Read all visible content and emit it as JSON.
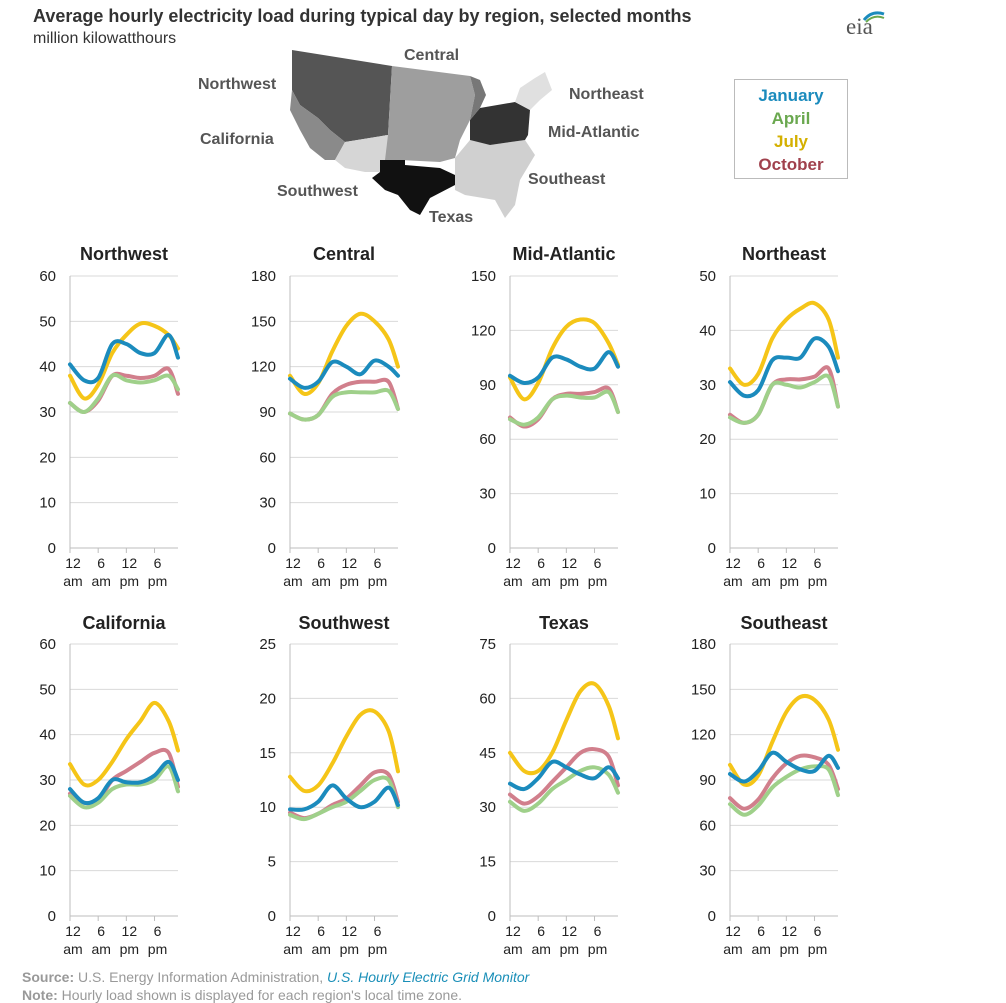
{
  "title": "Average hourly electricity load during typical day by region, selected months",
  "subtitle": "million kilowatthours",
  "logo_text": "eia",
  "map": {
    "labels": {
      "northwest": "Northwest",
      "central": "Central",
      "northeast": "Northeast",
      "california": "California",
      "mid_atlantic": "Mid-Atlantic",
      "southwest": "Southwest",
      "southeast": "Southeast",
      "texas": "Texas"
    }
  },
  "legend": {
    "items": [
      {
        "label": "January",
        "color": "#1b8bbd"
      },
      {
        "label": "April",
        "color": "#6aa84f"
      },
      {
        "label": "July",
        "color": "#d4b000"
      },
      {
        "label": "October",
        "color": "#a0414d"
      }
    ]
  },
  "series_colors": {
    "January": "#1b8bbd",
    "April": "#9fd08a",
    "July": "#f5c518",
    "October": "#d17f8c"
  },
  "chart_data": [
    {
      "type": "line",
      "title": "Northwest",
      "ylim": [
        0,
        60
      ],
      "yticks": [
        "0",
        "10",
        "20",
        "30",
        "40",
        "50",
        "60"
      ],
      "xticks": [
        [
          "12",
          "am"
        ],
        [
          "6",
          "am"
        ],
        [
          "12",
          "pm"
        ],
        [
          "6",
          "pm"
        ]
      ],
      "x": [
        0,
        3,
        6,
        9,
        12,
        15,
        18,
        21,
        23
      ],
      "series": [
        {
          "name": "January",
          "values": [
            40.5,
            37,
            37.5,
            45,
            45,
            43,
            43,
            47,
            42
          ]
        },
        {
          "name": "April",
          "values": [
            32,
            30,
            33,
            38,
            37,
            36.5,
            37,
            38,
            35
          ]
        },
        {
          "name": "July",
          "values": [
            38,
            33,
            36,
            43,
            47,
            49.5,
            49,
            47,
            44
          ]
        },
        {
          "name": "October",
          "values": [
            32,
            30,
            32.5,
            38,
            38,
            37.5,
            38,
            39.5,
            34
          ]
        }
      ]
    },
    {
      "type": "line",
      "title": "Central",
      "ylim": [
        0,
        180
      ],
      "yticks": [
        "0",
        "30",
        "60",
        "90",
        "120",
        "150",
        "180"
      ],
      "xticks": [
        [
          "12",
          "am"
        ],
        [
          "6",
          "am"
        ],
        [
          "12",
          "pm"
        ],
        [
          "6",
          "pm"
        ]
      ],
      "x": [
        0,
        3,
        6,
        9,
        12,
        15,
        18,
        21,
        23
      ],
      "series": [
        {
          "name": "January",
          "values": [
            112,
            106,
            110,
            123,
            120,
            115,
            124,
            120,
            114
          ]
        },
        {
          "name": "April",
          "values": [
            89,
            85,
            88,
            100,
            103,
            103,
            103,
            104,
            92
          ]
        },
        {
          "name": "July",
          "values": [
            114,
            102,
            109,
            130,
            147,
            155,
            150,
            138,
            120
          ]
        },
        {
          "name": "October",
          "values": [
            89,
            85,
            88,
            102,
            108,
            110,
            110,
            110,
            92
          ]
        }
      ]
    },
    {
      "type": "line",
      "title": "Mid-Atlantic",
      "ylim": [
        0,
        150
      ],
      "yticks": [
        "0",
        "30",
        "60",
        "90",
        "120",
        "150"
      ],
      "xticks": [
        [
          "12",
          "am"
        ],
        [
          "6",
          "am"
        ],
        [
          "12",
          "pm"
        ],
        [
          "6",
          "pm"
        ]
      ],
      "x": [
        0,
        3,
        6,
        9,
        12,
        15,
        18,
        21,
        23
      ],
      "series": [
        {
          "name": "January",
          "values": [
            95,
            91,
            94,
            105,
            104,
            100,
            99,
            108,
            100
          ]
        },
        {
          "name": "April",
          "values": [
            71,
            68,
            72,
            82,
            84,
            83,
            83,
            86,
            75
          ]
        },
        {
          "name": "July",
          "values": [
            94,
            82,
            91,
            110,
            122,
            126,
            124,
            113,
            101
          ]
        },
        {
          "name": "October",
          "values": [
            72,
            67,
            71,
            82,
            85,
            85,
            86,
            88,
            75
          ]
        }
      ]
    },
    {
      "type": "line",
      "title": "Northeast",
      "ylim": [
        0,
        50
      ],
      "yticks": [
        "0",
        "10",
        "20",
        "30",
        "40",
        "50"
      ],
      "xticks": [
        [
          "12",
          "am"
        ],
        [
          "6",
          "am"
        ],
        [
          "12",
          "pm"
        ],
        [
          "6",
          "pm"
        ]
      ],
      "x": [
        0,
        3,
        6,
        9,
        12,
        15,
        18,
        21,
        23
      ],
      "series": [
        {
          "name": "January",
          "values": [
            30.5,
            28,
            29,
            34.5,
            35,
            35,
            38.5,
            37,
            32.5
          ]
        },
        {
          "name": "April",
          "values": [
            24,
            23,
            24.5,
            30,
            30,
            29.5,
            30.5,
            31.5,
            26
          ]
        },
        {
          "name": "July",
          "values": [
            33,
            30,
            32,
            38.5,
            42,
            44,
            45,
            42,
            35
          ]
        },
        {
          "name": "October",
          "values": [
            24.5,
            23,
            24.5,
            30,
            31,
            31,
            31.5,
            33,
            26
          ]
        }
      ]
    },
    {
      "type": "line",
      "title": "California",
      "ylim": [
        0,
        60
      ],
      "yticks": [
        "0",
        "10",
        "20",
        "30",
        "40",
        "50",
        "60"
      ],
      "xticks": [
        [
          "12",
          "am"
        ],
        [
          "6",
          "am"
        ],
        [
          "12",
          "pm"
        ],
        [
          "6",
          "pm"
        ]
      ],
      "x": [
        0,
        3,
        6,
        9,
        12,
        15,
        18,
        21,
        23
      ],
      "series": [
        {
          "name": "January",
          "values": [
            28,
            25,
            26,
            30,
            29.5,
            29.5,
            31,
            34,
            30
          ]
        },
        {
          "name": "April",
          "values": [
            26.5,
            24,
            25,
            28,
            29,
            29,
            30,
            33,
            27.5
          ]
        },
        {
          "name": "July",
          "values": [
            33.5,
            29,
            30,
            34,
            39,
            43,
            47,
            43,
            36.5
          ]
        },
        {
          "name": "October",
          "values": [
            27,
            25,
            25.5,
            30,
            32,
            34,
            36,
            36,
            28.5
          ]
        }
      ]
    },
    {
      "type": "line",
      "title": "Southwest",
      "ylim": [
        0,
        25
      ],
      "yticks": [
        "0",
        "5",
        "10",
        "15",
        "20",
        "25"
      ],
      "xticks": [
        [
          "12",
          "am"
        ],
        [
          "6",
          "am"
        ],
        [
          "12",
          "pm"
        ],
        [
          "6",
          "pm"
        ]
      ],
      "x": [
        0,
        3,
        6,
        9,
        12,
        15,
        18,
        21,
        23
      ],
      "series": [
        {
          "name": "January",
          "values": [
            9.8,
            9.8,
            10.5,
            12,
            10.8,
            10,
            10.5,
            11.8,
            10.2
          ]
        },
        {
          "name": "April",
          "values": [
            9.3,
            8.9,
            9.4,
            10,
            10.5,
            11.5,
            12.5,
            12.5,
            10
          ]
        },
        {
          "name": "July",
          "values": [
            12.8,
            11.5,
            12,
            14,
            16.5,
            18.5,
            18.8,
            17,
            13.3
          ]
        },
        {
          "name": "October",
          "values": [
            9.5,
            9,
            9.4,
            10.2,
            10.8,
            12,
            13.2,
            13,
            10.5
          ]
        }
      ]
    },
    {
      "type": "line",
      "title": "Texas",
      "ylim": [
        0,
        75
      ],
      "yticks": [
        "0",
        "15",
        "30",
        "45",
        "60",
        "75"
      ],
      "xticks": [
        [
          "12",
          "am"
        ],
        [
          "6",
          "am"
        ],
        [
          "12",
          "pm"
        ],
        [
          "6",
          "pm"
        ]
      ],
      "x": [
        0,
        3,
        6,
        9,
        12,
        15,
        18,
        21,
        23
      ],
      "series": [
        {
          "name": "January",
          "values": [
            36.5,
            35,
            38,
            42.5,
            41,
            39,
            38,
            41,
            38
          ]
        },
        {
          "name": "April",
          "values": [
            31.5,
            29,
            31,
            35,
            37.5,
            40,
            41,
            39,
            34
          ]
        },
        {
          "name": "July",
          "values": [
            45,
            40,
            40,
            45,
            54,
            62,
            64,
            58,
            49
          ]
        },
        {
          "name": "October",
          "values": [
            33.5,
            31,
            33,
            37,
            41,
            45,
            46,
            44,
            36
          ]
        }
      ]
    },
    {
      "type": "line",
      "title": "Southeast",
      "ylim": [
        0,
        180
      ],
      "yticks": [
        "0",
        "30",
        "60",
        "90",
        "120",
        "150",
        "180"
      ],
      "xticks": [
        [
          "12",
          "am"
        ],
        [
          "6",
          "am"
        ],
        [
          "12",
          "pm"
        ],
        [
          "6",
          "pm"
        ]
      ],
      "x": [
        0,
        3,
        6,
        9,
        12,
        15,
        18,
        21,
        23
      ],
      "series": [
        {
          "name": "January",
          "values": [
            94,
            89,
            96,
            108,
            102,
            97,
            96,
            106,
            98
          ]
        },
        {
          "name": "April",
          "values": [
            74,
            67,
            73,
            85,
            92,
            97,
            99,
            97,
            80
          ]
        },
        {
          "name": "July",
          "values": [
            100,
            87,
            93,
            115,
            135,
            145,
            143,
            130,
            110
          ]
        },
        {
          "name": "October",
          "values": [
            78,
            71,
            77,
            91,
            101,
            106,
            105,
            100,
            84
          ]
        }
      ]
    }
  ],
  "footer": {
    "source_label": "Source:",
    "source_text": " U.S. Energy Information Administration, ",
    "source_link": "U.S. Hourly Electric Grid Monitor",
    "note_label": "Note:",
    "note_text": " Hourly load shown is displayed for each region's local time zone."
  }
}
